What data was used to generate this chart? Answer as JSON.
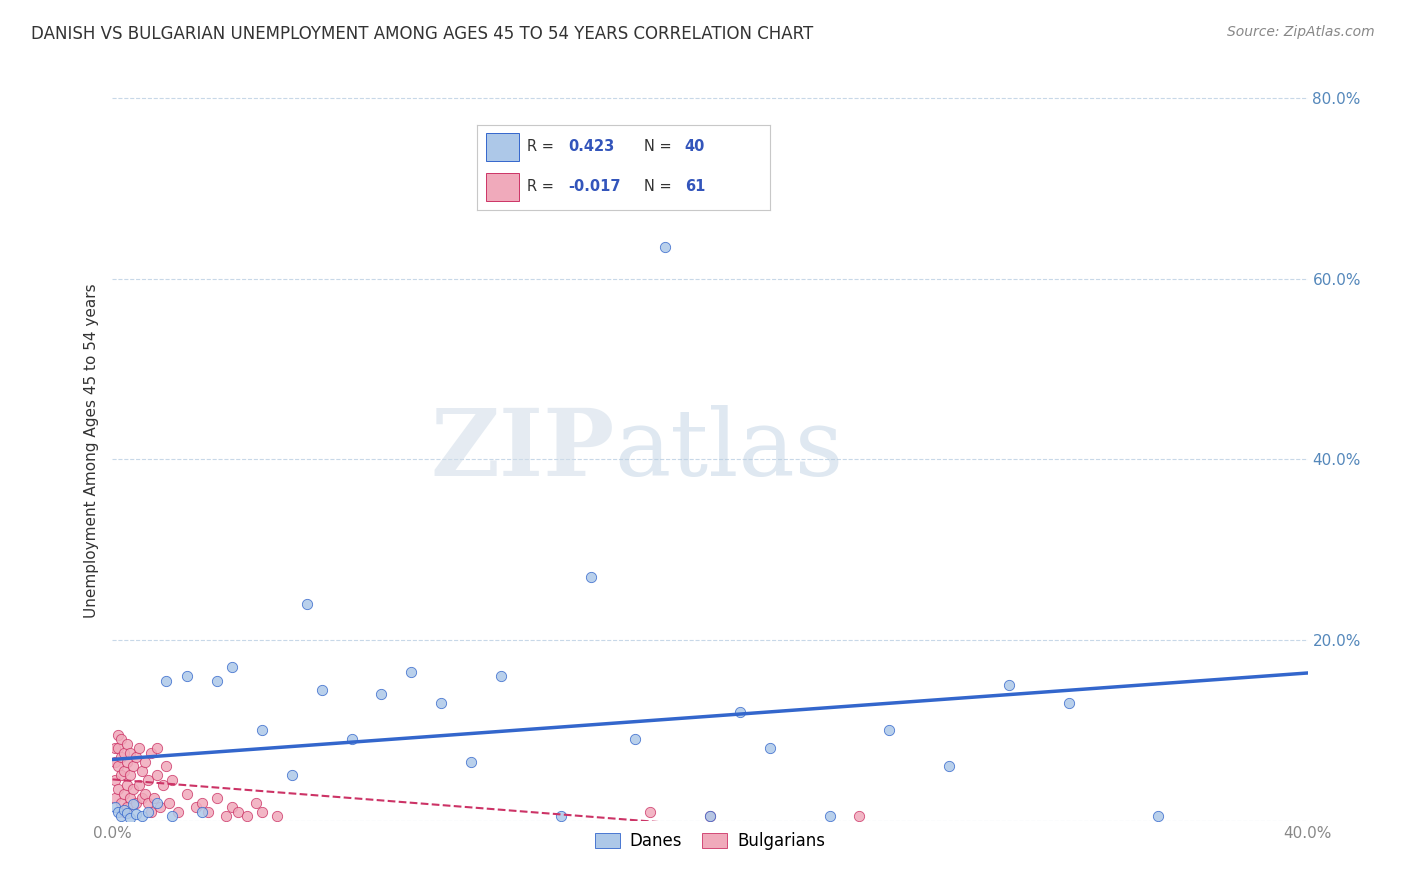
{
  "title": "DANISH VS BULGARIAN UNEMPLOYMENT AMONG AGES 45 TO 54 YEARS CORRELATION CHART",
  "source": "Source: ZipAtlas.com",
  "ylabel": "Unemployment Among Ages 45 to 54 years",
  "danes_R": 0.423,
  "danes_N": 40,
  "bulgarians_R": -0.017,
  "bulgarians_N": 61,
  "danes_color": "#adc8e8",
  "danes_line_color": "#3366cc",
  "bulgarians_color": "#f0aabb",
  "bulgarians_line_color": "#cc3366",
  "background_color": "#ffffff",
  "grid_color": "#c8d8e8",
  "title_color": "#333333",
  "right_axis_color": "#5588bb",
  "legend_R_color": "#3355bb",
  "xlim": [
    0.0,
    0.4
  ],
  "ylim": [
    0.0,
    0.82
  ],
  "danes_x": [
    0.001,
    0.002,
    0.003,
    0.004,
    0.005,
    0.006,
    0.007,
    0.008,
    0.01,
    0.012,
    0.015,
    0.018,
    0.02,
    0.025,
    0.03,
    0.035,
    0.04,
    0.05,
    0.06,
    0.065,
    0.07,
    0.08,
    0.09,
    0.1,
    0.11,
    0.12,
    0.13,
    0.15,
    0.16,
    0.175,
    0.185,
    0.2,
    0.21,
    0.22,
    0.24,
    0.26,
    0.28,
    0.3,
    0.32,
    0.35
  ],
  "danes_y": [
    0.015,
    0.01,
    0.005,
    0.012,
    0.008,
    0.003,
    0.018,
    0.007,
    0.005,
    0.01,
    0.02,
    0.155,
    0.005,
    0.16,
    0.01,
    0.155,
    0.17,
    0.1,
    0.05,
    0.24,
    0.145,
    0.09,
    0.14,
    0.165,
    0.13,
    0.065,
    0.16,
    0.005,
    0.27,
    0.09,
    0.635,
    0.005,
    0.12,
    0.08,
    0.005,
    0.1,
    0.06,
    0.15,
    0.13,
    0.005
  ],
  "bulgarians_x": [
    0.001,
    0.001,
    0.001,
    0.001,
    0.002,
    0.002,
    0.002,
    0.002,
    0.003,
    0.003,
    0.003,
    0.003,
    0.004,
    0.004,
    0.004,
    0.004,
    0.005,
    0.005,
    0.005,
    0.005,
    0.006,
    0.006,
    0.006,
    0.007,
    0.007,
    0.008,
    0.008,
    0.009,
    0.009,
    0.01,
    0.01,
    0.011,
    0.011,
    0.012,
    0.012,
    0.013,
    0.013,
    0.014,
    0.015,
    0.015,
    0.016,
    0.017,
    0.018,
    0.019,
    0.02,
    0.022,
    0.025,
    0.028,
    0.03,
    0.032,
    0.035,
    0.038,
    0.04,
    0.042,
    0.045,
    0.048,
    0.05,
    0.055,
    0.2,
    0.25,
    0.18
  ],
  "bulgarians_y": [
    0.025,
    0.045,
    0.065,
    0.08,
    0.035,
    0.06,
    0.08,
    0.095,
    0.02,
    0.05,
    0.07,
    0.09,
    0.03,
    0.055,
    0.075,
    0.01,
    0.04,
    0.065,
    0.085,
    0.015,
    0.025,
    0.05,
    0.075,
    0.035,
    0.06,
    0.02,
    0.07,
    0.04,
    0.08,
    0.025,
    0.055,
    0.03,
    0.065,
    0.02,
    0.045,
    0.075,
    0.01,
    0.025,
    0.05,
    0.08,
    0.015,
    0.04,
    0.06,
    0.02,
    0.045,
    0.01,
    0.03,
    0.015,
    0.02,
    0.01,
    0.025,
    0.005,
    0.015,
    0.01,
    0.005,
    0.02,
    0.01,
    0.005,
    0.005,
    0.005,
    0.01
  ]
}
